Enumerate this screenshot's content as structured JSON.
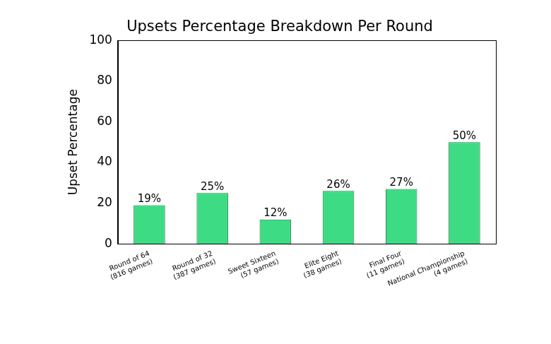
{
  "chart_data": {
    "type": "bar",
    "title": "Upsets Percentage Breakdown Per Round",
    "y_label": "Upset Percentage",
    "categories": [
      "Round of 64\n(816 games)",
      "Round of 32\n(387 games)",
      "Sweet Sixteen\n(57 games)",
      "Elite Eight\n(38 games)",
      "Final Four\n(11 games)",
      "National Championship\n(4 games)"
    ],
    "values": [
      19,
      25,
      12,
      26,
      27,
      50
    ],
    "value_labels": [
      "19%",
      "25%",
      "12%",
      "26%",
      "27%",
      "50%"
    ],
    "color": "#3ddc84",
    "ylim": [
      0,
      100
    ],
    "yticks": [
      0,
      20,
      40,
      60,
      80,
      100
    ],
    "grid": false,
    "data_labels": true
  }
}
